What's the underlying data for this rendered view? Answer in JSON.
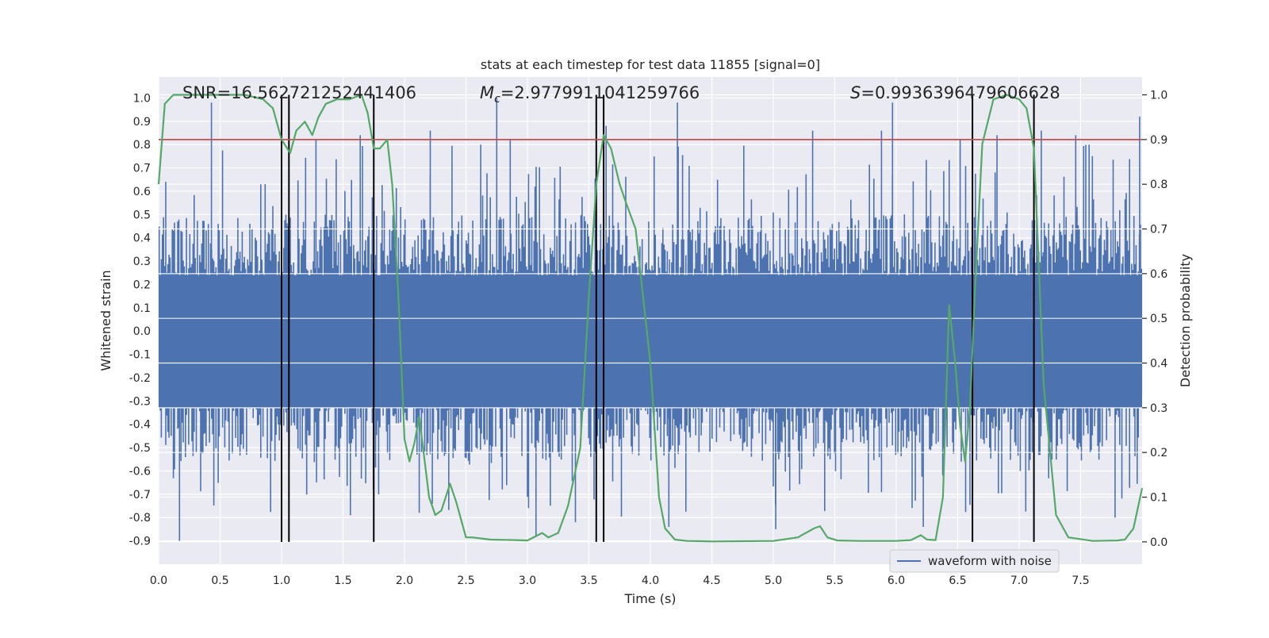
{
  "chart_data": {
    "type": "line",
    "title": "stats at each timestep for test data 11855 [signal=0]",
    "xlabel": "Time (s)",
    "ylabel": "Whitened strain",
    "ylabel_right": "Detection probability",
    "xlim": [
      0.0,
      8.0
    ],
    "ylim": [
      -1.0,
      1.09
    ],
    "ylim_right": [
      -0.05,
      1.04
    ],
    "xticks": [
      "0.0",
      "0.5",
      "1.0",
      "1.5",
      "2.0",
      "2.5",
      "3.0",
      "3.5",
      "4.0",
      "4.5",
      "5.0",
      "5.5",
      "6.0",
      "6.5",
      "7.0",
      "7.5"
    ],
    "yticks": [
      "-0.9",
      "-0.8",
      "-0.7",
      "-0.6",
      "-0.5",
      "-0.4",
      "-0.3",
      "-0.2",
      "-0.1",
      "0.0",
      "0.1",
      "0.2",
      "0.3",
      "0.4",
      "0.5",
      "0.6",
      "0.7",
      "0.8",
      "0.9",
      "1.0"
    ],
    "yticks_right": [
      "0.0",
      "0.1",
      "0.2",
      "0.3",
      "0.4",
      "0.5",
      "0.6",
      "0.7",
      "0.8",
      "0.9",
      "1.0"
    ],
    "annotations": {
      "snr": "SNR=16.562721252441406",
      "mc_symbol": "M",
      "mc_sub": "c",
      "mc_value": "=2.9779911041259766",
      "s_symbol": "S",
      "s_value": "=0.9936396479606628"
    },
    "legend": {
      "label": "waveform with noise",
      "position": "lower-right"
    },
    "grid": true,
    "threshold": {
      "value": 0.9,
      "axis": "right",
      "color": "#c44e52"
    },
    "vertical_lines": [
      1.0,
      1.06,
      1.75,
      3.56,
      3.62,
      6.62,
      7.12
    ],
    "series": [
      {
        "name": "waveform with noise",
        "color": "#4c72b0",
        "axis": "left",
        "kind": "noise-envelope",
        "band": [
          -0.33,
          0.24
        ],
        "typical_range": [
          -0.56,
          0.5
        ],
        "spikes": [
          [
            0.43,
            0.98
          ],
          [
            0.17,
            -0.9
          ],
          [
            1.28,
            0.82
          ],
          [
            1.64,
            0.84
          ],
          [
            1.79,
            -0.7
          ],
          [
            2.21,
            0.86
          ],
          [
            2.62,
            0.8
          ],
          [
            2.75,
            1.0
          ],
          [
            2.86,
            0.82
          ],
          [
            3.07,
            -0.88
          ],
          [
            3.64,
            0.88
          ],
          [
            3.39,
            -0.82
          ],
          [
            4.22,
            0.98
          ],
          [
            5.32,
            0.86
          ],
          [
            5.88,
            0.86
          ],
          [
            5.97,
            0.98
          ],
          [
            6.52,
            0.82
          ],
          [
            6.82,
            0.84
          ],
          [
            7.18,
            0.86
          ],
          [
            7.46,
            0.84
          ],
          [
            7.98,
            0.92
          ],
          [
            4.15,
            -0.84
          ],
          [
            5.02,
            -0.85
          ],
          [
            6.22,
            -0.84
          ],
          [
            7.78,
            -0.8
          ]
        ]
      },
      {
        "name": "",
        "color": "#55a868",
        "axis": "right",
        "x": [
          0.0,
          0.05,
          0.12,
          0.3,
          0.5,
          0.7,
          0.85,
          0.93,
          1.0,
          1.07,
          1.12,
          1.19,
          1.25,
          1.3,
          1.36,
          1.45,
          1.55,
          1.65,
          1.7,
          1.75,
          1.8,
          1.86,
          1.9,
          1.95,
          2.0,
          2.04,
          2.08,
          2.12,
          2.2,
          2.25,
          2.3,
          2.37,
          2.42,
          2.5,
          2.55,
          2.7,
          2.9,
          3.0,
          3.12,
          3.17,
          3.25,
          3.33,
          3.43,
          3.5,
          3.56,
          3.62,
          3.68,
          3.75,
          3.8,
          3.88,
          3.94,
          4.0,
          4.07,
          4.12,
          4.2,
          4.3,
          4.5,
          5.0,
          5.2,
          5.33,
          5.38,
          5.44,
          5.52,
          5.7,
          6.0,
          6.12,
          6.2,
          6.25,
          6.32,
          6.38,
          6.43,
          6.48,
          6.52,
          6.56,
          6.6,
          6.64,
          6.7,
          6.79,
          6.9,
          7.0,
          7.06,
          7.12,
          7.2,
          7.3,
          7.4,
          7.6,
          7.8,
          7.86,
          7.93,
          8.0
        ],
        "y": [
          0.8,
          0.98,
          1.0,
          1.0,
          1.0,
          1.0,
          0.99,
          0.97,
          0.9,
          0.87,
          0.92,
          0.94,
          0.91,
          0.95,
          0.98,
          0.99,
          0.99,
          1.0,
          0.96,
          0.88,
          0.88,
          0.9,
          0.8,
          0.55,
          0.23,
          0.18,
          0.22,
          0.28,
          0.1,
          0.06,
          0.07,
          0.13,
          0.09,
          0.01,
          0.01,
          0.005,
          0.004,
          0.003,
          0.02,
          0.01,
          0.02,
          0.08,
          0.21,
          0.55,
          0.8,
          0.91,
          0.88,
          0.8,
          0.76,
          0.7,
          0.55,
          0.4,
          0.1,
          0.03,
          0.005,
          0.002,
          0.001,
          0.002,
          0.01,
          0.03,
          0.035,
          0.01,
          0.003,
          0.002,
          0.002,
          0.004,
          0.015,
          0.005,
          0.004,
          0.1,
          0.53,
          0.4,
          0.26,
          0.18,
          0.3,
          0.56,
          0.89,
          0.99,
          1.0,
          0.99,
          0.97,
          0.88,
          0.35,
          0.06,
          0.01,
          0.002,
          0.003,
          0.005,
          0.03,
          0.12
        ]
      }
    ]
  }
}
